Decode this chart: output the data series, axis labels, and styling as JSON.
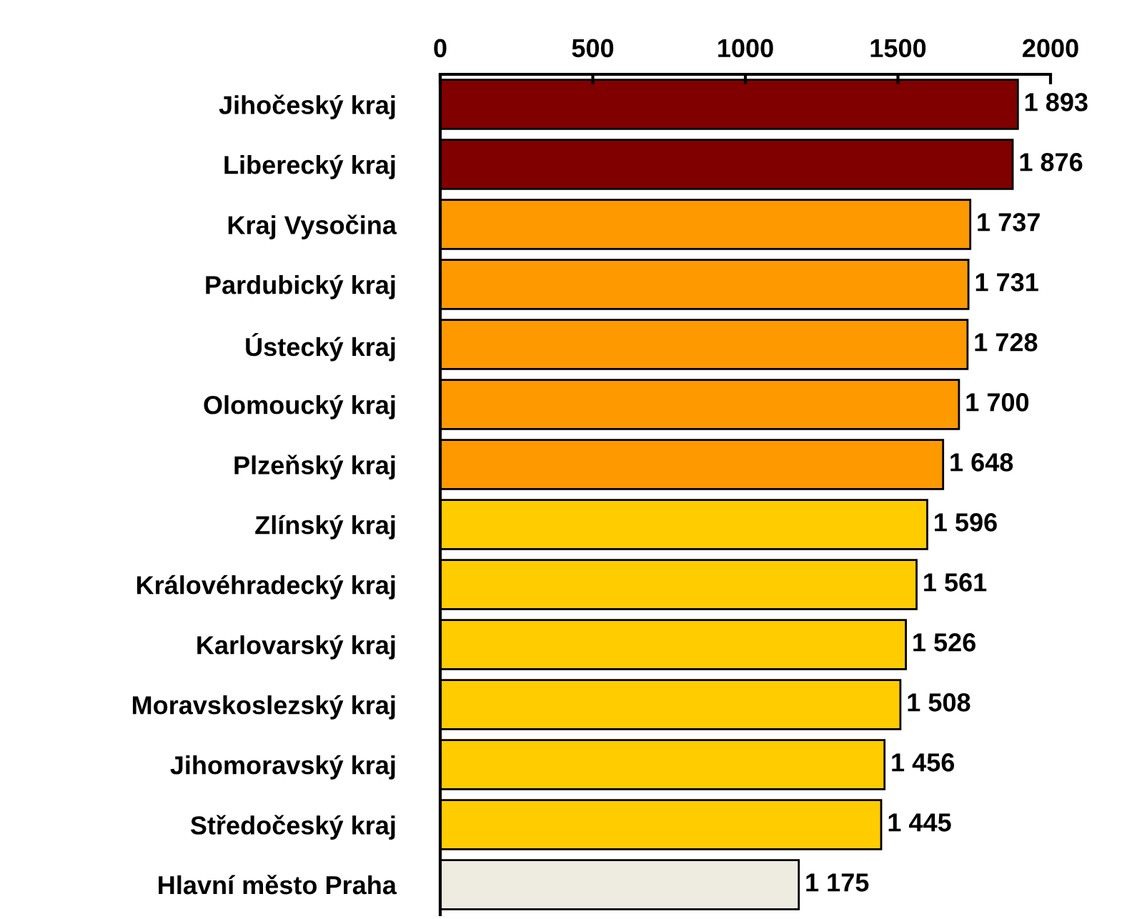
{
  "chart_data": {
    "type": "bar",
    "orientation": "horizontal",
    "categories": [
      "Jihočeský kraj",
      "Liberecký kraj",
      "Kraj Vysočina",
      "Pardubický kraj",
      "Ústecký kraj",
      "Olomoucký kraj",
      "Plzeňský kraj",
      "Zlínský kraj",
      "Královéhradecký kraj",
      "Karlovarský kraj",
      "Moravskoslezský kraj",
      "Jihomoravský kraj",
      "Středočeský kraj",
      "Hlavní město Praha"
    ],
    "values": [
      1893,
      1876,
      1737,
      1731,
      1728,
      1700,
      1648,
      1596,
      1561,
      1526,
      1508,
      1456,
      1445,
      1175
    ],
    "colors": [
      "#800000",
      "#800000",
      "#ff9900",
      "#ff9900",
      "#ff9900",
      "#ff9900",
      "#ff9900",
      "#ffcc00",
      "#ffcc00",
      "#ffcc00",
      "#ffcc00",
      "#ffcc00",
      "#ffcc00",
      "#eeece1"
    ],
    "value_labels": [
      "1 893",
      "1 876",
      "1 737",
      "1 731",
      "1 728",
      "1 700",
      "1 648",
      "1 596",
      "1 561",
      "1 526",
      "1 508",
      "1 456",
      "1 445",
      "1 175"
    ],
    "xlim": [
      0,
      2000
    ],
    "xticks": [
      0,
      500,
      1000,
      1500,
      2000
    ],
    "grid": false,
    "legend": false
  }
}
